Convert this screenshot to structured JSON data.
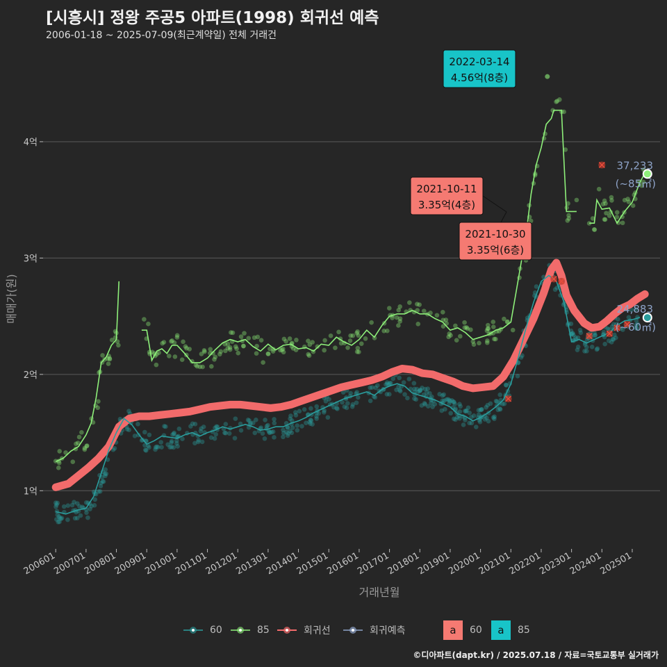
{
  "header": {
    "title": "[시흥시] 정왕 주공5 아파트(1998) 회귀선 예측",
    "subtitle": "2006-01-18 ~ 2025-07-09(최근계약일) 전체 거래건"
  },
  "caption": "©디아파트(dapt.kr) / 2025.07.18 / 자료=국토교통부 실거래가",
  "colors": {
    "background": "#262626",
    "s60": "#2a9d9d",
    "s85": "#8ef07a",
    "regression": "#f26b6b",
    "forecast": "#8ea3c8",
    "label_teal": "#18c4c8",
    "label_red": "#f57a72"
  },
  "chart_data": {
    "type": "scatter",
    "xlabel": "거래년월",
    "ylabel": "매매가(원)",
    "x_range": [
      "2005-08",
      "2025-12"
    ],
    "ylim": [
      0.5,
      4.8
    ],
    "y_ticks": [
      {
        "value": 1,
        "label": "1억"
      },
      {
        "value": 2,
        "label": "2억"
      },
      {
        "value": 3,
        "label": "3억"
      },
      {
        "value": 4,
        "label": "4억"
      }
    ],
    "x_ticks": [
      "200601",
      "200701",
      "200801",
      "200901",
      "201001",
      "201101",
      "201201",
      "201301",
      "201401",
      "201501",
      "201601",
      "201701",
      "201801",
      "201901",
      "202001",
      "202101",
      "202201",
      "202301",
      "202401",
      "202501"
    ],
    "grid": true,
    "series_60_trend": [
      [
        "2006-01",
        0.82
      ],
      [
        "2006-05",
        0.8
      ],
      [
        "2006-09",
        0.83
      ],
      [
        "2007-01",
        0.85
      ],
      [
        "2007-04",
        0.95
      ],
      [
        "2007-07",
        1.15
      ],
      [
        "2007-10",
        1.35
      ],
      [
        "2008-01",
        1.5
      ],
      [
        "2008-04",
        1.62
      ],
      [
        "2008-07",
        1.57
      ],
      [
        "2008-10",
        1.48
      ],
      [
        "2009-01",
        1.4
      ],
      [
        "2009-04",
        1.43
      ],
      [
        "2009-07",
        1.47
      ],
      [
        "2009-10",
        1.46
      ],
      [
        "2010-01",
        1.45
      ],
      [
        "2010-04",
        1.48
      ],
      [
        "2010-07",
        1.5
      ],
      [
        "2010-10",
        1.47
      ],
      [
        "2011-01",
        1.5
      ],
      [
        "2011-04",
        1.52
      ],
      [
        "2011-07",
        1.55
      ],
      [
        "2011-10",
        1.53
      ],
      [
        "2012-01",
        1.55
      ],
      [
        "2012-04",
        1.57
      ],
      [
        "2012-07",
        1.55
      ],
      [
        "2012-10",
        1.52
      ],
      [
        "2013-01",
        1.53
      ],
      [
        "2013-04",
        1.55
      ],
      [
        "2013-07",
        1.55
      ],
      [
        "2013-10",
        1.58
      ],
      [
        "2014-01",
        1.6
      ],
      [
        "2014-04",
        1.63
      ],
      [
        "2014-07",
        1.67
      ],
      [
        "2014-10",
        1.7
      ],
      [
        "2015-01",
        1.73
      ],
      [
        "2015-04",
        1.76
      ],
      [
        "2015-07",
        1.79
      ],
      [
        "2015-10",
        1.81
      ],
      [
        "2016-01",
        1.83
      ],
      [
        "2016-04",
        1.85
      ],
      [
        "2016-07",
        1.82
      ],
      [
        "2016-10",
        1.87
      ],
      [
        "2017-01",
        1.9
      ],
      [
        "2017-04",
        1.92
      ],
      [
        "2017-07",
        1.9
      ],
      [
        "2017-10",
        1.84
      ],
      [
        "2018-01",
        1.82
      ],
      [
        "2018-04",
        1.8
      ],
      [
        "2018-07",
        1.78
      ],
      [
        "2018-10",
        1.75
      ],
      [
        "2019-01",
        1.72
      ],
      [
        "2019-04",
        1.66
      ],
      [
        "2019-07",
        1.64
      ],
      [
        "2019-10",
        1.6
      ],
      [
        "2020-01",
        1.63
      ],
      [
        "2020-04",
        1.67
      ],
      [
        "2020-07",
        1.72
      ],
      [
        "2020-10",
        1.78
      ],
      [
        "2021-01",
        1.92
      ],
      [
        "2021-04",
        2.15
      ],
      [
        "2021-07",
        2.4
      ],
      [
        "2021-10",
        2.62
      ],
      [
        "2022-01",
        2.8
      ],
      [
        "2022-04",
        2.85
      ],
      [
        "2022-07",
        2.8
      ],
      [
        "2022-10",
        2.62
      ],
      [
        "2023-01",
        2.28
      ],
      [
        "2023-04",
        2.3
      ],
      [
        "2023-07",
        2.27
      ],
      [
        "2023-10",
        2.3
      ],
      [
        "2024-01",
        2.33
      ],
      [
        "2024-04",
        2.36
      ],
      [
        "2024-07",
        2.42
      ],
      [
        "2024-10",
        2.46
      ],
      [
        "2025-01",
        2.47
      ],
      [
        "2025-04",
        2.49
      ]
    ],
    "series_85_trend": [
      [
        [
          "2006-01",
          1.25
        ],
        [
          "2006-04",
          1.28
        ],
        [
          "2006-07",
          1.34
        ],
        [
          "2006-10",
          1.38
        ],
        [
          "2007-01",
          1.48
        ],
        [
          "2007-03",
          1.58
        ],
        [
          "2007-05",
          1.8
        ],
        [
          "2007-07",
          2.1
        ],
        [
          "2007-09",
          2.15
        ],
        [
          "2007-11",
          2.25
        ],
        [
          "2008-01",
          2.3
        ],
        [
          "2008-02",
          2.8
        ]
      ],
      [
        [
          "2008-11",
          2.38
        ],
        [
          "2009-01",
          2.38
        ],
        [
          "2009-03",
          2.12
        ],
        [
          "2009-05",
          2.2
        ],
        [
          "2009-07",
          2.22
        ],
        [
          "2009-09",
          2.18
        ],
        [
          "2009-11",
          2.25
        ],
        [
          "2010-01",
          2.25
        ],
        [
          "2010-04",
          2.18
        ],
        [
          "2010-07",
          2.1
        ],
        [
          "2010-10",
          2.1
        ],
        [
          "2011-01",
          2.14
        ],
        [
          "2011-04",
          2.21
        ],
        [
          "2011-07",
          2.27
        ],
        [
          "2011-10",
          2.3
        ],
        [
          "2012-01",
          2.28
        ],
        [
          "2012-04",
          2.3
        ],
        [
          "2012-07",
          2.24
        ],
        [
          "2012-10",
          2.2
        ],
        [
          "2013-01",
          2.26
        ],
        [
          "2013-04",
          2.21
        ],
        [
          "2013-07",
          2.25
        ],
        [
          "2013-10",
          2.26
        ],
        [
          "2014-01",
          2.22
        ],
        [
          "2014-04",
          2.23
        ],
        [
          "2014-07",
          2.2
        ],
        [
          "2014-10",
          2.26
        ],
        [
          "2015-01",
          2.25
        ],
        [
          "2015-04",
          2.32
        ],
        [
          "2015-07",
          2.28
        ],
        [
          "2015-10",
          2.25
        ],
        [
          "2016-01",
          2.3
        ],
        [
          "2016-04",
          2.38
        ],
        [
          "2016-07",
          2.32
        ],
        [
          "2016-10",
          2.42
        ],
        [
          "2017-01",
          2.5
        ],
        [
          "2017-04",
          2.52
        ],
        [
          "2017-07",
          2.52
        ],
        [
          "2017-10",
          2.55
        ],
        [
          "2018-01",
          2.52
        ],
        [
          "2018-04",
          2.52
        ],
        [
          "2018-07",
          2.48
        ],
        [
          "2018-10",
          2.45
        ],
        [
          "2019-01",
          2.38
        ],
        [
          "2019-04",
          2.4
        ],
        [
          "2019-07",
          2.36
        ],
        [
          "2019-10",
          2.3
        ],
        [
          "2020-01",
          2.32
        ],
        [
          "2020-04",
          2.34
        ],
        [
          "2020-07",
          2.38
        ],
        [
          "2020-10",
          2.4
        ],
        [
          "2021-01",
          2.45
        ],
        [
          "2021-03",
          2.7
        ],
        [
          "2021-05",
          2.95
        ],
        [
          "2021-07",
          3.2
        ],
        [
          "2021-09",
          3.55
        ],
        [
          "2021-11",
          3.8
        ],
        [
          "2022-01",
          3.95
        ],
        [
          "2022-03",
          4.15
        ],
        [
          "2022-05",
          4.2
        ],
        [
          "2022-06",
          4.27
        ],
        [
          "2022-09",
          4.27
        ],
        [
          "2022-11",
          3.4
        ],
        [
          "2023-03",
          3.4
        ]
      ],
      [
        [
          "2023-08",
          3.3
        ],
        [
          "2023-10",
          3.3
        ],
        [
          "2023-11",
          3.5
        ],
        [
          "2024-01",
          3.42
        ],
        [
          "2024-04",
          3.43
        ],
        [
          "2024-07",
          3.3
        ],
        [
          "2024-10",
          3.4
        ],
        [
          "2025-01",
          3.48
        ],
        [
          "2025-04",
          3.65
        ],
        [
          "2025-06",
          3.73
        ]
      ]
    ],
    "regression": [
      [
        "2006-01",
        1.03
      ],
      [
        "2006-06",
        1.06
      ],
      [
        "2006-10",
        1.13
      ],
      [
        "2007-02",
        1.2
      ],
      [
        "2007-06",
        1.28
      ],
      [
        "2007-10",
        1.38
      ],
      [
        "2008-02",
        1.55
      ],
      [
        "2008-06",
        1.62
      ],
      [
        "2008-10",
        1.64
      ],
      [
        "2009-02",
        1.64
      ],
      [
        "2009-06",
        1.65
      ],
      [
        "2009-10",
        1.66
      ],
      [
        "2010-02",
        1.67
      ],
      [
        "2010-06",
        1.68
      ],
      [
        "2010-10",
        1.7
      ],
      [
        "2011-02",
        1.72
      ],
      [
        "2011-06",
        1.73
      ],
      [
        "2011-10",
        1.74
      ],
      [
        "2012-02",
        1.74
      ],
      [
        "2012-06",
        1.73
      ],
      [
        "2012-10",
        1.72
      ],
      [
        "2013-02",
        1.71
      ],
      [
        "2013-06",
        1.72
      ],
      [
        "2013-10",
        1.74
      ],
      [
        "2014-02",
        1.77
      ],
      [
        "2014-06",
        1.8
      ],
      [
        "2014-10",
        1.83
      ],
      [
        "2015-02",
        1.86
      ],
      [
        "2015-06",
        1.89
      ],
      [
        "2015-10",
        1.91
      ],
      [
        "2016-02",
        1.93
      ],
      [
        "2016-06",
        1.95
      ],
      [
        "2016-10",
        1.98
      ],
      [
        "2017-02",
        2.02
      ],
      [
        "2017-06",
        2.05
      ],
      [
        "2017-10",
        2.04
      ],
      [
        "2018-02",
        2.01
      ],
      [
        "2018-06",
        2.0
      ],
      [
        "2018-10",
        1.97
      ],
      [
        "2019-02",
        1.94
      ],
      [
        "2019-06",
        1.9
      ],
      [
        "2019-10",
        1.88
      ],
      [
        "2020-02",
        1.89
      ],
      [
        "2020-06",
        1.9
      ],
      [
        "2020-10",
        1.98
      ],
      [
        "2021-02",
        2.12
      ],
      [
        "2021-06",
        2.3
      ],
      [
        "2021-10",
        2.48
      ],
      [
        "2022-02",
        2.7
      ],
      [
        "2022-05",
        2.9
      ],
      [
        "2022-07",
        2.96
      ],
      [
        "2022-09",
        2.85
      ],
      [
        "2022-11",
        2.68
      ],
      [
        "2023-02",
        2.55
      ],
      [
        "2023-06",
        2.44
      ],
      [
        "2023-09",
        2.4
      ],
      [
        "2023-12",
        2.41
      ],
      [
        "2024-03",
        2.46
      ],
      [
        "2024-06",
        2.52
      ],
      [
        "2024-09",
        2.57
      ],
      [
        "2024-12",
        2.6
      ],
      [
        "2025-03",
        2.65
      ],
      [
        "2025-06",
        2.69
      ]
    ],
    "regression_points": [
      [
        "2020-12",
        1.79
      ],
      [
        "2022-06",
        2.82
      ],
      [
        "2022-09",
        2.8
      ],
      [
        "2023-08",
        2.33
      ],
      [
        "2024-01",
        3.8
      ],
      [
        "2024-04",
        2.35
      ],
      [
        "2024-07",
        2.4
      ],
      [
        "2024-11",
        2.43
      ]
    ],
    "latest": [
      {
        "series": "85",
        "date": "2025-07",
        "value": 3.7233,
        "label": "37,233",
        "sublabel": "(~85㎡)"
      },
      {
        "series": "60",
        "date": "2025-07",
        "value": 2.4883,
        "label": "24,883",
        "sublabel": "(~60㎡)"
      }
    ],
    "annotations": [
      {
        "date": "2022-03-14",
        "value": 4.56,
        "line1": "2022-03-14",
        "line2": "4.56억(8층)",
        "style": "teal"
      },
      {
        "date": "2021-10-11",
        "value": 3.35,
        "line1": "2021-10-11",
        "line2": "3.35억(4층)",
        "style": "red"
      },
      {
        "date": "2021-10-30",
        "value": 3.35,
        "line1": "2021-10-30",
        "line2": "3.35억(6층)",
        "style": "red"
      }
    ],
    "legend": {
      "items": [
        {
          "label": "60",
          "color": "#2a9d9d"
        },
        {
          "label": "85",
          "color": "#8ef07a"
        },
        {
          "label": "회귀선",
          "color": "#f26b6b"
        },
        {
          "label": "회귀예측",
          "color": "#8ea3c8"
        }
      ],
      "keys": [
        {
          "glyph": "a",
          "label": "60",
          "color": "#f57a72"
        },
        {
          "glyph": "a",
          "label": "85",
          "color": "#18c4c8"
        }
      ]
    }
  }
}
